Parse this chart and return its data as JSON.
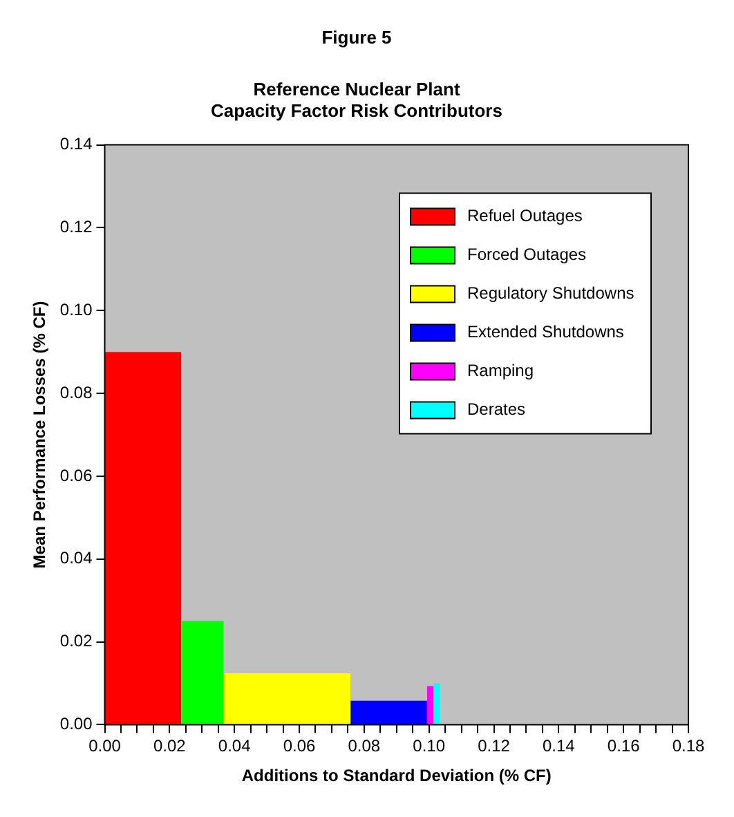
{
  "chart_data": {
    "type": "area",
    "title": "Figure 5",
    "subtitle": "Reference Nuclear Plant\nCapacity Factor Risk Contributors",
    "xlabel": "Additions to Standard Deviation (% CF)",
    "ylabel": "Mean Performance Losses (% CF)",
    "series": [
      {
        "name": "Refuel Outages",
        "color": "#ff0000",
        "x": [
          0,
          0.0236
        ],
        "values": [
          0.09,
          0.09
        ]
      },
      {
        "name": "Forced Outages",
        "color": "#00ff00",
        "x": [
          0.0236,
          0.0367
        ],
        "values": [
          0.025,
          0.025
        ]
      },
      {
        "name": "Regulatory Shutdowns",
        "color": "#ffff00",
        "x": [
          0.0367,
          0.0758
        ],
        "values": [
          0.0124,
          0.0124
        ]
      },
      {
        "name": "Extended Shutdowns",
        "color": "#0000ff",
        "x": [
          0.0758,
          0.0994
        ],
        "values": [
          0.0058,
          0.0058
        ]
      },
      {
        "name": "Ramping",
        "color": "#ff00ff",
        "x": [
          0.0994,
          0.1014
        ],
        "values": [
          0.0093,
          0.0093
        ]
      },
      {
        "name": "Derates",
        "color": "#00ffff",
        "x": [
          0.1014,
          0.1034
        ],
        "values": [
          0.0099,
          0.0099
        ]
      }
    ],
    "xlim": [
      0,
      0.18
    ],
    "ylim": [
      0,
      0.14
    ],
    "xticks": [
      {
        "value": 0,
        "label": "0.00"
      },
      {
        "value": 0.005,
        "label": null
      },
      {
        "value": 0.01,
        "label": null
      },
      {
        "value": 0.015,
        "label": null
      },
      {
        "value": 0.02,
        "label": "0.02"
      },
      {
        "value": 0.025,
        "label": null
      },
      {
        "value": 0.03,
        "label": null
      },
      {
        "value": 0.035,
        "label": null
      },
      {
        "value": 0.04,
        "label": "0.04"
      },
      {
        "value": 0.045,
        "label": null
      },
      {
        "value": 0.05,
        "label": null
      },
      {
        "value": 0.055,
        "label": null
      },
      {
        "value": 0.06,
        "label": "0.06"
      },
      {
        "value": 0.065,
        "label": null
      },
      {
        "value": 0.07,
        "label": null
      },
      {
        "value": 0.075,
        "label": null
      },
      {
        "value": 0.08,
        "label": "0.08"
      },
      {
        "value": 0.085,
        "label": null
      },
      {
        "value": 0.09,
        "label": null
      },
      {
        "value": 0.095,
        "label": null
      },
      {
        "value": 0.1,
        "label": "0.10"
      },
      {
        "value": 0.105,
        "label": null
      },
      {
        "value": 0.11,
        "label": null
      },
      {
        "value": 0.115,
        "label": null
      },
      {
        "value": 0.12,
        "label": "0.12"
      },
      {
        "value": 0.125,
        "label": null
      },
      {
        "value": 0.13,
        "label": null
      },
      {
        "value": 0.135,
        "label": null
      },
      {
        "value": 0.14,
        "label": "0.14"
      },
      {
        "value": 0.145,
        "label": null
      },
      {
        "value": 0.15,
        "label": null
      },
      {
        "value": 0.155,
        "label": null
      },
      {
        "value": 0.16,
        "label": "0.16"
      },
      {
        "value": 0.165,
        "label": null
      },
      {
        "value": 0.17,
        "label": null
      },
      {
        "value": 0.175,
        "label": null
      },
      {
        "value": 0.18,
        "label": "0.18"
      }
    ],
    "yticks": [
      {
        "value": 0,
        "label": "0.00"
      },
      {
        "value": 0.02,
        "label": "0.02"
      },
      {
        "value": 0.04,
        "label": "0.04"
      },
      {
        "value": 0.06,
        "label": "0.06"
      },
      {
        "value": 0.08,
        "label": "0.08"
      },
      {
        "value": 0.1,
        "label": "0.10"
      },
      {
        "value": 0.12,
        "label": "0.12"
      },
      {
        "value": 0.14,
        "label": "0.14"
      }
    ],
    "legend": "top right"
  }
}
